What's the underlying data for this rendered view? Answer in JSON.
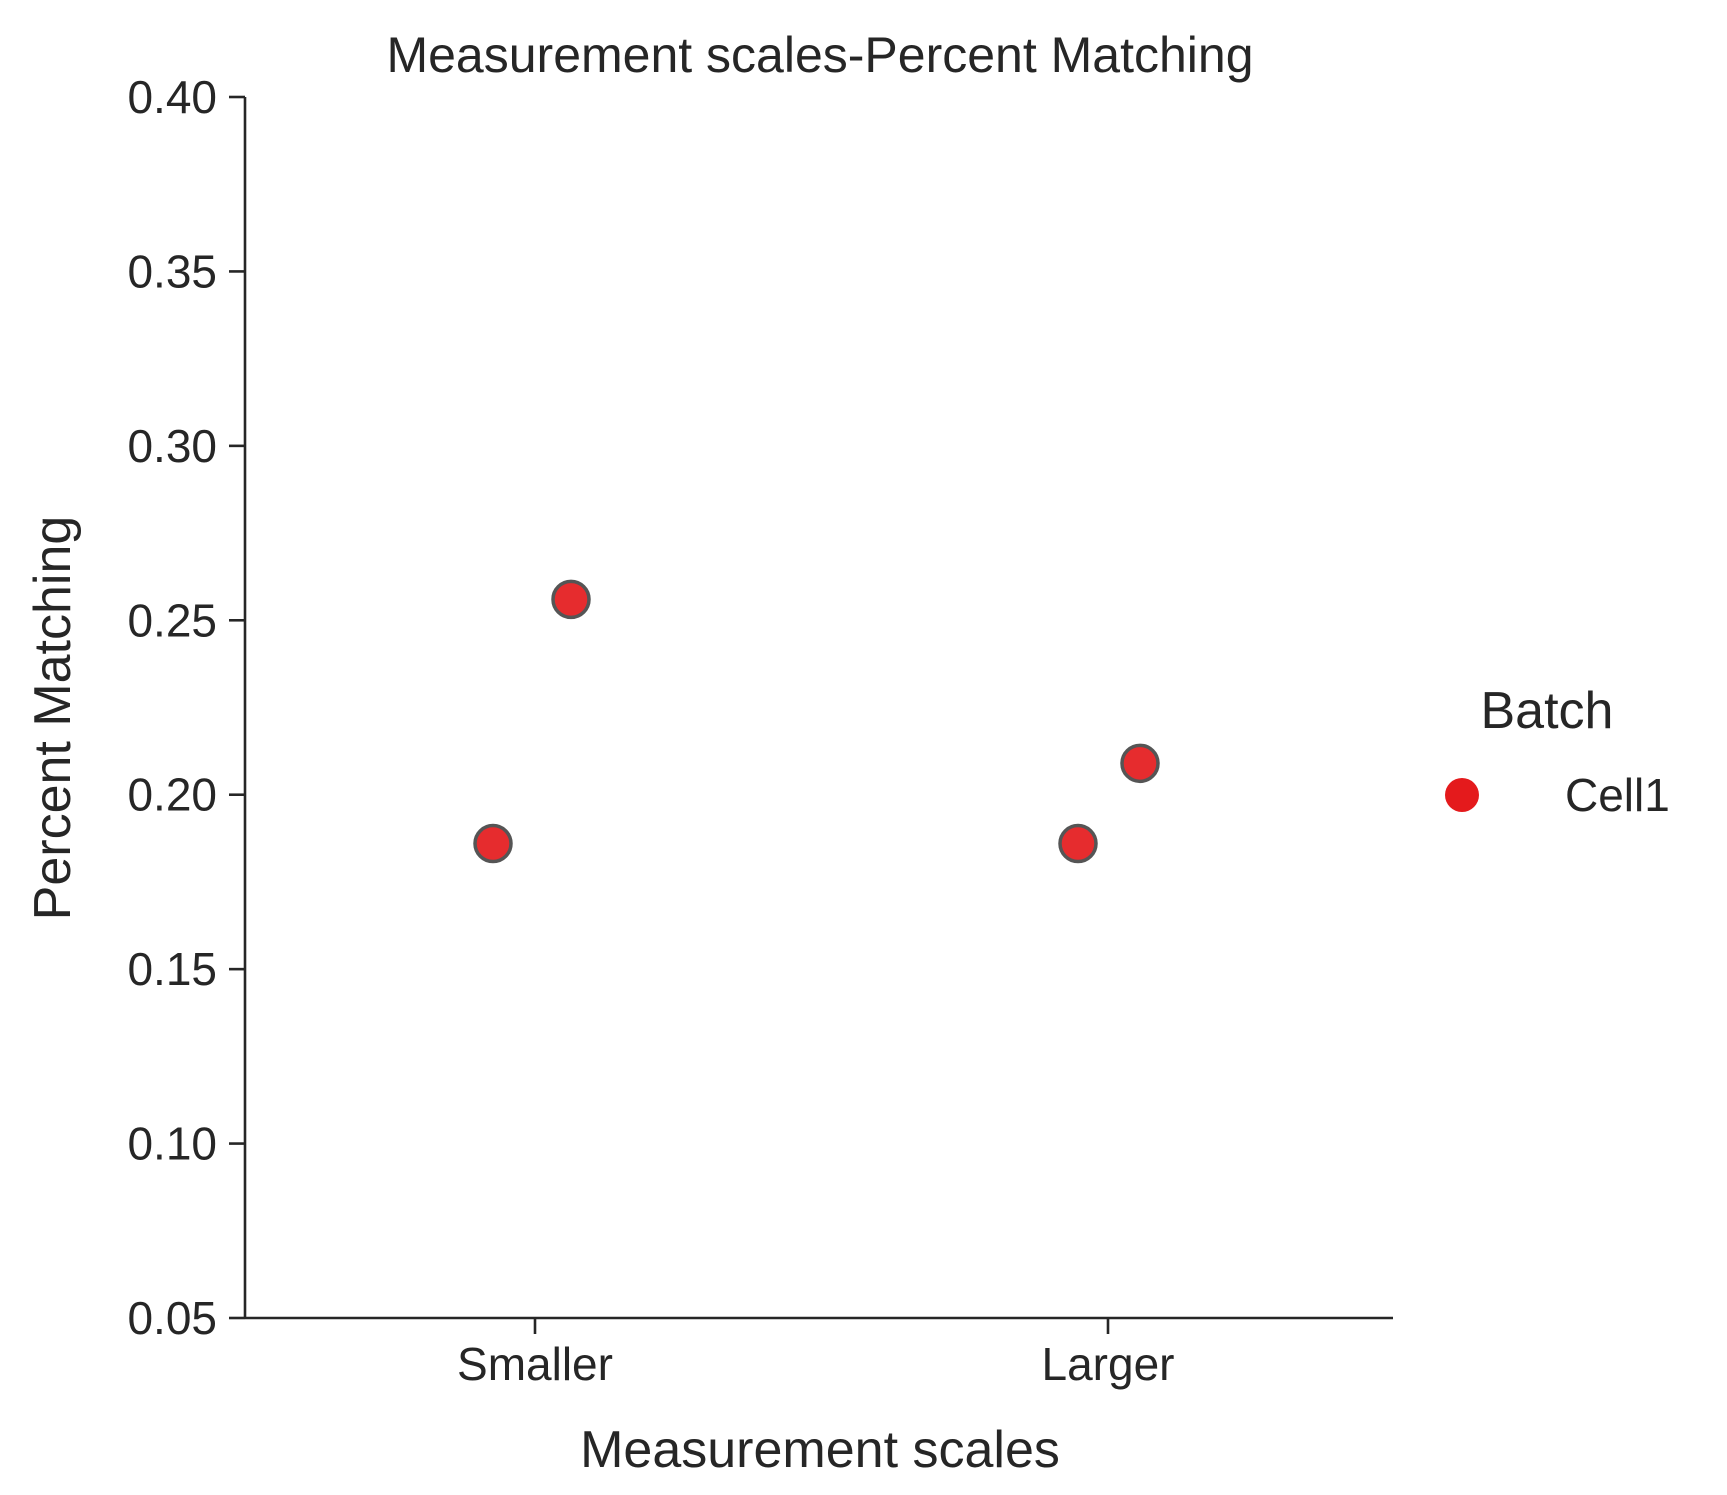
{
  "chart_data": {
    "type": "scatter",
    "title": "Measurement scales-Percent Matching",
    "xlabel": "Measurement scales",
    "ylabel": "Percent Matching",
    "categories": [
      "Smaller",
      "Larger"
    ],
    "ylim": [
      0.05,
      0.4
    ],
    "yticks": [
      "0.05",
      "0.10",
      "0.15",
      "0.20",
      "0.25",
      "0.30",
      "0.35",
      "0.40"
    ],
    "grid": false,
    "legend": {
      "title": "Batch",
      "placement": "right",
      "entries": [
        {
          "label": "Cell1",
          "color": "#e41a1c"
        }
      ]
    },
    "series": [
      {
        "name": "Cell1",
        "color": "#e41a1c",
        "points": [
          {
            "category": "Smaller",
            "y": 0.186
          },
          {
            "category": "Smaller",
            "y": 0.256
          },
          {
            "category": "Larger",
            "y": 0.209
          },
          {
            "category": "Larger",
            "y": 0.186
          }
        ]
      }
    ]
  }
}
